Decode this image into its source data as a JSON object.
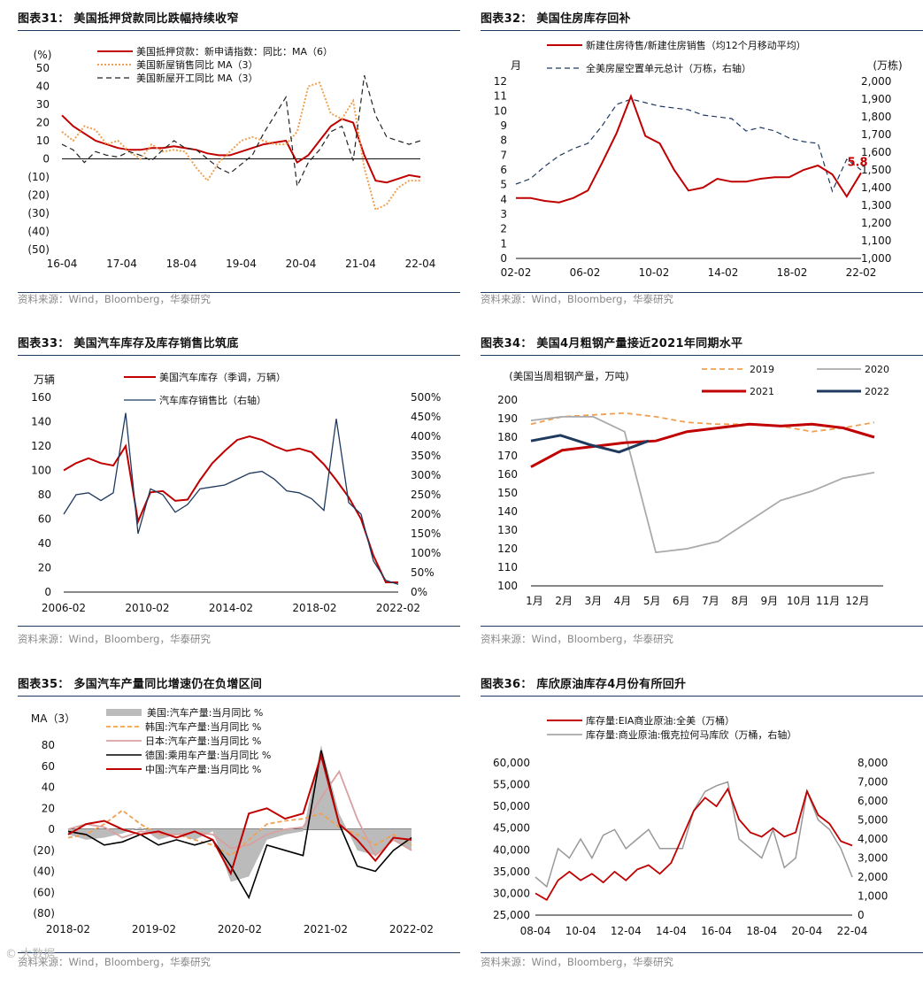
{
  "source_label": "资料来源：Wind，Bloomberg，华泰研究",
  "watermark": "© 大数据",
  "colors": {
    "red": "#c00000",
    "orange": "#f0a050",
    "dark": "#222222",
    "gray": "#aaaaaa",
    "navy": "#1f3a5f",
    "pink": "#d9a0a0"
  },
  "chart_data": [
    {
      "title": "图表31： 美国抵押贷款同比跌幅持续收窄",
      "type": "line",
      "unit_label": "(%)",
      "ylim": [
        -50,
        50
      ],
      "y_ticks": [
        "50",
        "40",
        "30",
        "20",
        "10",
        "0",
        "(10)",
        "(20)",
        "(30)",
        "(40)",
        "(50)"
      ],
      "x_ticks": [
        "16-04",
        "17-04",
        "18-04",
        "19-04",
        "20-04",
        "21-04",
        "22-04"
      ],
      "series": [
        {
          "name": "美国抵押贷款：新申请指数：同比：MA（6）",
          "style": "red-solid",
          "values": [
            24,
            18,
            14,
            10,
            8,
            6,
            5,
            5,
            6,
            6,
            7,
            6,
            5,
            3,
            2,
            2,
            4,
            6,
            8,
            9,
            10,
            -2,
            2,
            10,
            18,
            22,
            20,
            2,
            -12,
            -13,
            -11,
            -9,
            -10
          ]
        },
        {
          "name": "美国新屋销售同比 MA（3）",
          "style": "orange-dotted",
          "values": [
            15,
            10,
            18,
            16,
            8,
            10,
            4,
            0,
            8,
            4,
            5,
            4,
            -5,
            -12,
            -2,
            4,
            10,
            12,
            10,
            8,
            8,
            15,
            40,
            42,
            25,
            22,
            32,
            -5,
            -28,
            -25,
            -16,
            -12,
            -12
          ]
        },
        {
          "name": "美国新屋开工同比 MA（3）",
          "style": "dark-dashed",
          "values": [
            8,
            5,
            -2,
            4,
            2,
            1,
            4,
            2,
            -1,
            5,
            10,
            6,
            5,
            0,
            -5,
            -8,
            -3,
            2,
            14,
            24,
            34,
            -15,
            -2,
            5,
            15,
            18,
            -1,
            46,
            24,
            12,
            10,
            8,
            10
          ]
        }
      ]
    },
    {
      "title": "图表32： 美国住房库存回补",
      "type": "line",
      "left_unit": "月",
      "right_unit": "(万栋)",
      "ylim_left": [
        0,
        12
      ],
      "ylim_right": [
        1000,
        2000
      ],
      "y_ticks_left": [
        "12",
        "11",
        "10",
        "9",
        "8",
        "7",
        "6",
        "5",
        "4",
        "3",
        "2",
        "1",
        "0"
      ],
      "y_ticks_right": [
        "2,000",
        "1,900",
        "1,800",
        "1,700",
        "1,600",
        "1,500",
        "1,400",
        "1,300",
        "1,200",
        "1,100",
        "1,000"
      ],
      "x_ticks": [
        "02-02",
        "06-02",
        "10-02",
        "14-02",
        "18-02",
        "22-02"
      ],
      "annotation": "5.8",
      "series": [
        {
          "name": "新建住房待售/新建住房销售（均12个月移动平均）",
          "axis": "left",
          "values": [
            4.1,
            4.1,
            3.9,
            3.8,
            4.1,
            4.6,
            6.5,
            8.5,
            11,
            8.3,
            7.8,
            6,
            4.6,
            4.8,
            5.4,
            5.2,
            5.2,
            5.4,
            5.5,
            5.5,
            6,
            6.3,
            5.7,
            4.2,
            5.8
          ]
        },
        {
          "name": "全美房屋空置单元总计（万栋，右轴）",
          "axis": "right",
          "values": [
            1420,
            1450,
            1520,
            1580,
            1620,
            1650,
            1750,
            1870,
            1900,
            1880,
            1860,
            1850,
            1840,
            1810,
            1800,
            1790,
            1720,
            1740,
            1720,
            1680,
            1660,
            1650,
            1380,
            1560,
            1500
          ]
        }
      ]
    },
    {
      "title": "图表33： 美国汽车库存及库存销售比筑底",
      "type": "line",
      "left_unit": "万辆",
      "ylim_left": [
        0,
        160
      ],
      "ylim_right": [
        0,
        500
      ],
      "y_ticks_left": [
        "160",
        "140",
        "120",
        "100",
        "80",
        "60",
        "40",
        "20",
        "0"
      ],
      "y_ticks_right": [
        "500%",
        "450%",
        "400%",
        "350%",
        "300%",
        "250%",
        "200%",
        "150%",
        "100%",
        "50%",
        "0%"
      ],
      "x_ticks": [
        "2006-02",
        "2010-02",
        "2014-02",
        "2018-02",
        "2022-02"
      ],
      "series": [
        {
          "name": "美国汽车库存（季调，万辆）",
          "axis": "left",
          "values": [
            100,
            106,
            110,
            106,
            104,
            120,
            58,
            82,
            83,
            75,
            76,
            92,
            106,
            116,
            125,
            128,
            125,
            120,
            116,
            118,
            115,
            105,
            92,
            78,
            60,
            30,
            8,
            8
          ]
        },
        {
          "name": "汽车库存销售比（右轴）",
          "axis": "right",
          "values": [
            200,
            250,
            255,
            235,
            255,
            460,
            150,
            265,
            250,
            205,
            225,
            265,
            270,
            275,
            290,
            305,
            310,
            290,
            260,
            255,
            240,
            210,
            445,
            230,
            200,
            80,
            30,
            20
          ]
        }
      ]
    },
    {
      "title": "图表34： 美国4月粗钢产量接近2021年同期水平",
      "type": "line",
      "unit_label": "(美国当周粗钢产量，万吨)",
      "ylim": [
        100,
        200
      ],
      "y_ticks": [
        "200",
        "190",
        "180",
        "170",
        "160",
        "150",
        "140",
        "130",
        "120",
        "110",
        "100"
      ],
      "x_ticks": [
        "1月",
        "2月",
        "3月",
        "4月",
        "5月",
        "6月",
        "7月",
        "8月",
        "9月",
        "10月",
        "11月",
        "12月"
      ],
      "series": [
        {
          "name": "2019",
          "style": "orange-dashed",
          "values": [
            187,
            191,
            192,
            193,
            191,
            188,
            187,
            187,
            186,
            183,
            185,
            188
          ]
        },
        {
          "name": "2020",
          "style": "gray",
          "values": [
            189,
            191,
            191,
            183,
            118,
            120,
            124,
            135,
            146,
            151,
            158,
            161
          ]
        },
        {
          "name": "2021",
          "style": "red-thick",
          "values": [
            164,
            173,
            175,
            177,
            178,
            183,
            185,
            187,
            186,
            187,
            185,
            180
          ]
        },
        {
          "name": "2022",
          "style": "navy-thick",
          "values": [
            178,
            181,
            176,
            172,
            178
          ]
        }
      ]
    },
    {
      "title": "图表35： 多国汽车产量同比增速仍在负增区间",
      "type": "line",
      "unit_label": "MA（3）",
      "ylim": [
        -80,
        80
      ],
      "y_ticks": [
        "80",
        "60",
        "40",
        "20",
        "0",
        "(20)",
        "(40)",
        "(60)",
        "(80)"
      ],
      "x_ticks": [
        "2018-02",
        "2019-02",
        "2020-02",
        "2021-02",
        "2022-02"
      ],
      "series": [
        {
          "name": "美国:汽车产量:当月同比 %",
          "style": "gray-area",
          "values": [
            -5,
            -10,
            -8,
            -4,
            2,
            -10,
            -5,
            -10,
            -2,
            -50,
            -45,
            -10,
            -5,
            -2,
            80,
            15,
            -20,
            -25,
            -10,
            -20
          ]
        },
        {
          "name": "韩国:汽车产量:当月同比 %",
          "style": "orange-dashed",
          "values": [
            -8,
            -5,
            5,
            18,
            5,
            -5,
            -5,
            -10,
            -15,
            -25,
            -10,
            5,
            8,
            10,
            15,
            2,
            -5,
            -15,
            -5,
            -15
          ]
        },
        {
          "name": "日本:汽车产量:当月同比 %",
          "style": "pink",
          "values": [
            0,
            5,
            2,
            -8,
            -2,
            -4,
            -5,
            -3,
            -5,
            -18,
            -15,
            -5,
            0,
            2,
            30,
            55,
            10,
            -25,
            -10,
            -20
          ]
        },
        {
          "name": "德国:乘用车产量:当月同比 %",
          "style": "black",
          "values": [
            -2,
            -5,
            -15,
            -12,
            -5,
            -15,
            -10,
            -15,
            -10,
            -35,
            -65,
            -15,
            -20,
            -25,
            75,
            5,
            -35,
            -40,
            -20,
            -8
          ]
        },
        {
          "name": "中国:汽车产量:当月同比 %",
          "style": "red",
          "values": [
            -5,
            5,
            8,
            0,
            -5,
            -2,
            -8,
            -2,
            -10,
            -42,
            15,
            20,
            10,
            15,
            70,
            5,
            -10,
            -30,
            -8,
            -10
          ]
        }
      ]
    },
    {
      "title": "图表36： 库欣原油库存4月份有所回升",
      "type": "line",
      "ylim_left": [
        25000,
        60000
      ],
      "ylim_right": [
        0,
        8000
      ],
      "y_ticks_left": [
        "60,000",
        "55,000",
        "50,000",
        "45,000",
        "40,000",
        "35,000",
        "30,000",
        "25,000"
      ],
      "y_ticks_right": [
        "8,000",
        "7,000",
        "6,000",
        "5,000",
        "4,000",
        "3,000",
        "2,000",
        "1,000",
        "0"
      ],
      "x_ticks": [
        "08-04",
        "10-04",
        "12-04",
        "14-04",
        "16-04",
        "18-04",
        "20-04",
        "22-04"
      ],
      "series": [
        {
          "name": "库存量:EIA商业原油:全美（万桶）",
          "axis": "left",
          "values": [
            30000,
            28500,
            33000,
            35000,
            33000,
            34500,
            32500,
            35000,
            33000,
            35500,
            36500,
            34500,
            37000,
            43000,
            49000,
            52000,
            50000,
            54000,
            47000,
            44000,
            43000,
            45000,
            43000,
            44000,
            53500,
            48000,
            46000,
            42000,
            41000
          ]
        },
        {
          "name": "库存量:商业原油:俄克拉何马库欣（万桶，右轴）",
          "axis": "right",
          "values": [
            2000,
            1500,
            3500,
            3000,
            4000,
            3000,
            4200,
            4500,
            3500,
            4000,
            4500,
            3500,
            3500,
            3500,
            5500,
            6500,
            6800,
            7000,
            4000,
            3500,
            3000,
            4500,
            2500,
            3000,
            6500,
            5000,
            4500,
            3500,
            2000
          ]
        }
      ]
    }
  ]
}
